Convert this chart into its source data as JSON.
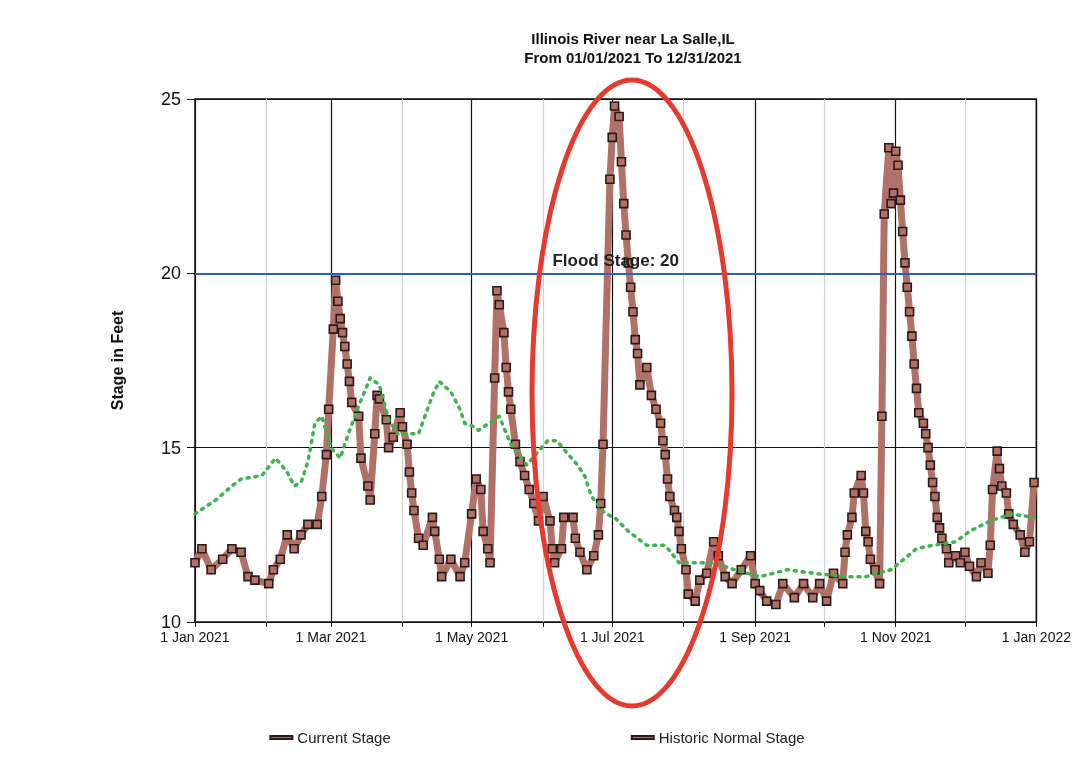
{
  "chart_data": {
    "type": "line",
    "title": "Illinois River near La Salle,IL",
    "subtitle": "From 01/01/2021 To 12/31/2021",
    "ylabel": "Stage in Feet",
    "xlim": [
      "2021-01-01",
      "2022-01-01"
    ],
    "xticks": [
      {
        "value": "2021-01-01",
        "label": "1 Jan 2021"
      },
      {
        "value": "2021-02-01",
        "label": null
      },
      {
        "value": "2021-03-01",
        "label": "1 Mar 2021"
      },
      {
        "value": "2021-04-01",
        "label": null
      },
      {
        "value": "2021-05-01",
        "label": "1 May 2021"
      },
      {
        "value": "2021-06-01",
        "label": null
      },
      {
        "value": "2021-07-01",
        "label": "1 Jul 2021"
      },
      {
        "value": "2021-08-01",
        "label": null
      },
      {
        "value": "2021-09-01",
        "label": "1 Sep 2021"
      },
      {
        "value": "2021-10-01",
        "label": null
      },
      {
        "value": "2021-11-01",
        "label": "1 Nov 2021"
      },
      {
        "value": "2021-12-01",
        "label": null
      },
      {
        "value": "2022-01-01",
        "label": "1 Jan 2022"
      }
    ],
    "ylim": [
      10,
      25
    ],
    "yticks": [
      10,
      15,
      20,
      25
    ],
    "grid": true,
    "legend": "bottom",
    "ref_lines": [
      {
        "axis": "y",
        "value": 20,
        "label": "Flood Stage: 20",
        "color": "#2a5fc4"
      }
    ],
    "series": [
      {
        "name": "Current Stage",
        "color": "#b07268",
        "marker": "square",
        "line_style": "solid",
        "x": [
          "2021-01-01",
          "2021-01-04",
          "2021-01-08",
          "2021-01-13",
          "2021-01-17",
          "2021-01-21",
          "2021-01-24",
          "2021-01-27",
          "2021-02-02",
          "2021-02-04",
          "2021-02-07",
          "2021-02-10",
          "2021-02-13",
          "2021-02-16",
          "2021-02-19",
          "2021-02-23",
          "2021-02-25",
          "2021-02-27",
          "2021-02-28",
          "2021-03-02",
          "2021-03-03",
          "2021-03-04",
          "2021-03-05",
          "2021-03-06",
          "2021-03-07",
          "2021-03-08",
          "2021-03-09",
          "2021-03-10",
          "2021-03-13",
          "2021-03-14",
          "2021-03-17",
          "2021-03-18",
          "2021-03-20",
          "2021-03-21",
          "2021-03-22",
          "2021-03-25",
          "2021-03-26",
          "2021-03-28",
          "2021-03-31",
          "2021-04-01",
          "2021-04-03",
          "2021-04-04",
          "2021-04-05",
          "2021-04-06",
          "2021-04-08",
          "2021-04-10",
          "2021-04-14",
          "2021-04-15",
          "2021-04-17",
          "2021-04-18",
          "2021-04-22",
          "2021-04-26",
          "2021-04-28",
          "2021-05-01",
          "2021-05-03",
          "2021-05-05",
          "2021-05-06",
          "2021-05-08",
          "2021-05-09",
          "2021-05-11",
          "2021-05-12",
          "2021-05-13",
          "2021-05-15",
          "2021-05-16",
          "2021-05-17",
          "2021-05-18",
          "2021-05-20",
          "2021-05-22",
          "2021-05-24",
          "2021-05-26",
          "2021-05-28",
          "2021-05-30",
          "2021-06-01",
          "2021-06-04",
          "2021-06-05",
          "2021-06-06",
          "2021-06-09",
          "2021-06-10",
          "2021-06-14",
          "2021-06-15",
          "2021-06-17",
          "2021-06-20",
          "2021-06-23",
          "2021-06-25",
          "2021-06-26",
          "2021-06-27",
          "2021-06-30",
          "2021-07-01",
          "2021-07-02",
          "2021-07-04",
          "2021-07-05",
          "2021-07-06",
          "2021-07-07",
          "2021-07-08",
          "2021-07-09",
          "2021-07-10",
          "2021-07-11",
          "2021-07-12",
          "2021-07-13",
          "2021-07-16",
          "2021-07-18",
          "2021-07-20",
          "2021-07-22",
          "2021-07-23",
          "2021-07-24",
          "2021-07-25",
          "2021-07-26",
          "2021-07-28",
          "2021-07-29",
          "2021-07-30",
          "2021-07-31",
          "2021-08-02",
          "2021-08-03",
          "2021-08-06",
          "2021-08-08",
          "2021-08-11",
          "2021-08-14",
          "2021-08-16",
          "2021-08-19",
          "2021-08-22",
          "2021-08-26",
          "2021-08-30",
          "2021-09-01",
          "2021-09-03",
          "2021-09-06",
          "2021-09-10",
          "2021-09-13",
          "2021-09-18",
          "2021-09-22",
          "2021-09-26",
          "2021-09-29",
          "2021-10-02",
          "2021-10-05",
          "2021-10-09",
          "2021-10-10",
          "2021-10-11",
          "2021-10-13",
          "2021-10-14",
          "2021-10-17",
          "2021-10-18",
          "2021-10-19",
          "2021-10-20",
          "2021-10-21",
          "2021-10-23",
          "2021-10-25",
          "2021-10-26",
          "2021-10-27",
          "2021-10-29",
          "2021-10-30",
          "2021-10-31",
          "2021-11-01",
          "2021-11-02",
          "2021-11-03",
          "2021-11-04",
          "2021-11-05",
          "2021-11-06",
          "2021-11-07",
          "2021-11-08",
          "2021-11-09",
          "2021-11-10",
          "2021-11-11",
          "2021-11-13",
          "2021-11-14",
          "2021-11-15",
          "2021-11-16",
          "2021-11-17",
          "2021-11-18",
          "2021-11-19",
          "2021-11-20",
          "2021-11-21",
          "2021-11-23",
          "2021-11-24",
          "2021-11-27",
          "2021-11-29",
          "2021-12-01",
          "2021-12-03",
          "2021-12-06",
          "2021-12-08",
          "2021-12-11",
          "2021-12-12",
          "2021-12-13",
          "2021-12-15",
          "2021-12-16",
          "2021-12-17",
          "2021-12-19",
          "2021-12-20",
          "2021-12-22",
          "2021-12-25",
          "2021-12-27",
          "2021-12-29",
          "2021-12-31"
        ],
        "values": [
          11.7,
          12.1,
          11.5,
          11.8,
          12.1,
          12.0,
          11.3,
          11.2,
          11.1,
          11.5,
          11.8,
          12.5,
          12.1,
          12.5,
          12.8,
          12.8,
          13.6,
          14.8,
          16.1,
          18.4,
          19.8,
          19.2,
          18.7,
          18.3,
          17.9,
          17.4,
          16.9,
          16.3,
          15.9,
          14.7,
          13.9,
          13.5,
          15.4,
          16.5,
          16.4,
          15.8,
          15.0,
          15.3,
          16.0,
          15.6,
          15.1,
          14.3,
          13.7,
          13.2,
          12.4,
          12.2,
          13.0,
          12.6,
          11.8,
          11.3,
          11.8,
          11.3,
          11.7,
          13.1,
          14.1,
          13.8,
          12.6,
          12.1,
          11.7,
          17.0,
          19.5,
          19.1,
          18.3,
          17.3,
          16.6,
          16.1,
          15.1,
          14.6,
          14.2,
          13.8,
          13.4,
          12.9,
          13.6,
          12.9,
          12.1,
          11.7,
          12.1,
          13.0,
          13.0,
          12.4,
          12.0,
          11.5,
          11.9,
          12.5,
          13.4,
          15.1,
          22.7,
          23.9,
          24.8,
          24.5,
          23.2,
          22.0,
          21.1,
          20.3,
          19.6,
          18.9,
          18.1,
          17.7,
          16.8,
          17.3,
          16.5,
          16.1,
          15.7,
          15.2,
          14.8,
          14.1,
          13.6,
          13.2,
          13.0,
          12.6,
          12.1,
          11.5,
          10.8,
          10.6,
          11.2,
          11.4,
          12.3,
          11.9,
          11.3,
          11.1,
          11.5,
          11.9,
          11.1,
          10.9,
          10.6,
          10.5,
          11.1,
          10.7,
          11.1,
          10.7,
          11.1,
          10.6,
          11.4,
          11.1,
          12.0,
          12.5,
          13.0,
          13.7,
          14.2,
          13.7,
          12.6,
          12.3,
          11.8,
          11.5,
          11.1,
          15.9,
          21.7,
          23.6,
          22.0,
          22.3,
          23.5,
          23.1,
          22.1,
          21.2,
          20.3,
          19.6,
          18.9,
          18.2,
          17.4,
          16.7,
          16.0,
          15.7,
          15.4,
          15.0,
          14.5,
          14.0,
          13.6,
          13.0,
          12.7,
          12.4,
          12.1,
          11.7,
          11.9,
          11.7,
          12.0,
          11.6,
          11.3,
          11.7,
          11.4,
          12.2,
          13.8,
          14.9,
          14.4,
          13.9,
          13.7,
          13.1,
          12.8,
          12.5,
          12.0,
          12.3,
          14.0
        ]
      },
      {
        "name": "Historic Normal Stage",
        "color": "#3cb44b",
        "marker": "none",
        "line_style": "dotted",
        "x": [
          "2021-01-01",
          "2021-01-10",
          "2021-01-17",
          "2021-01-21",
          "2021-01-30",
          "2021-02-05",
          "2021-02-10",
          "2021-02-13",
          "2021-02-16",
          "2021-02-19",
          "2021-02-22",
          "2021-02-25",
          "2021-03-01",
          "2021-03-05",
          "2021-03-08",
          "2021-03-13",
          "2021-03-18",
          "2021-03-22",
          "2021-03-26",
          "2021-03-30",
          "2021-04-08",
          "2021-04-14",
          "2021-04-17",
          "2021-04-22",
          "2021-04-26",
          "2021-04-28",
          "2021-05-02",
          "2021-05-04",
          "2021-05-13",
          "2021-05-18",
          "2021-05-25",
          "2021-05-30",
          "2021-06-03",
          "2021-06-07",
          "2021-06-12",
          "2021-06-16",
          "2021-06-19",
          "2021-06-22",
          "2021-06-28",
          "2021-07-02",
          "2021-07-08",
          "2021-07-16",
          "2021-07-24",
          "2021-07-30",
          "2021-08-08",
          "2021-08-14",
          "2021-08-23",
          "2021-09-03",
          "2021-09-15",
          "2021-09-26",
          "2021-10-10",
          "2021-10-19",
          "2021-10-30",
          "2021-11-10",
          "2021-11-17",
          "2021-11-27",
          "2021-12-03",
          "2021-12-12",
          "2021-12-21",
          "2021-12-31"
        ],
        "values": [
          13.1,
          13.5,
          13.9,
          14.1,
          14.2,
          14.7,
          14.3,
          13.9,
          14.0,
          14.6,
          15.7,
          15.9,
          15.0,
          14.7,
          15.3,
          16.2,
          17.0,
          16.8,
          15.8,
          15.4,
          15.4,
          16.5,
          16.9,
          16.6,
          16.1,
          15.7,
          15.6,
          15.5,
          15.9,
          15.1,
          14.5,
          14.9,
          15.2,
          15.2,
          14.8,
          14.5,
          14.2,
          13.6,
          13.1,
          13.0,
          12.6,
          12.2,
          12.2,
          11.7,
          11.7,
          11.7,
          11.5,
          11.3,
          11.5,
          11.4,
          11.3,
          11.3,
          11.5,
          12.1,
          12.2,
          12.3,
          12.6,
          12.9,
          13.1,
          13.0
        ]
      }
    ]
  }
}
